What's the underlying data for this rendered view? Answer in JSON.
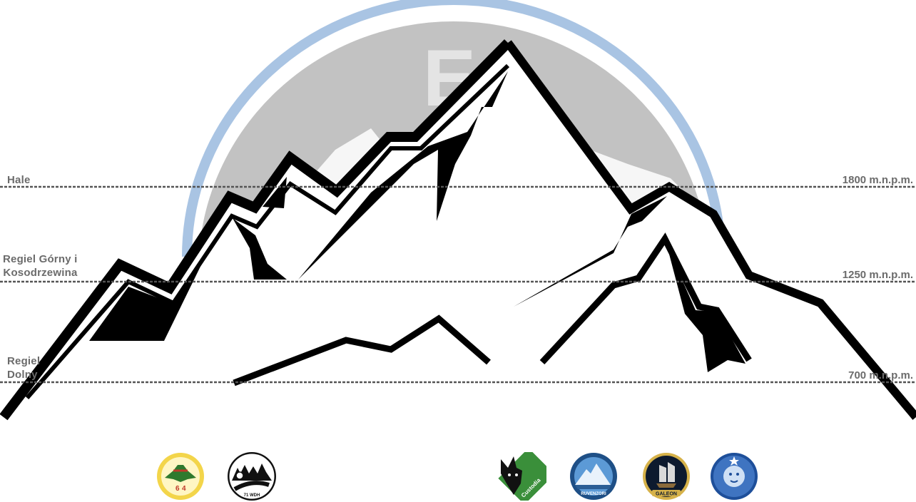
{
  "logo": {
    "letter": "E",
    "ring_color": "#a9c4e3",
    "disc_color": "#c2c2c2"
  },
  "zones": [
    {
      "name": "Hale",
      "altitude": "1800 m.n.p.m."
    },
    {
      "name_line1": "Regiel Górny i",
      "name_line2": "Kosodrzewina",
      "altitude": "1250 m.n.p.m."
    },
    {
      "name_line1": "Regiel",
      "name_line2": "Dolny",
      "altitude": "700 m.n.p.m."
    }
  ],
  "badges": [
    {
      "icon": "green-hat-badge-icon"
    },
    {
      "icon": "forest-road-badge-icon",
      "text": "71 WDH"
    },
    {
      "icon": "wolf-badge-icon",
      "text": "Custodia"
    },
    {
      "icon": "mountain-badge-icon",
      "text": "RUVENZORI"
    },
    {
      "icon": "ship-badge-icon",
      "text": "GALEON"
    },
    {
      "icon": "lion-badge-icon"
    }
  ]
}
